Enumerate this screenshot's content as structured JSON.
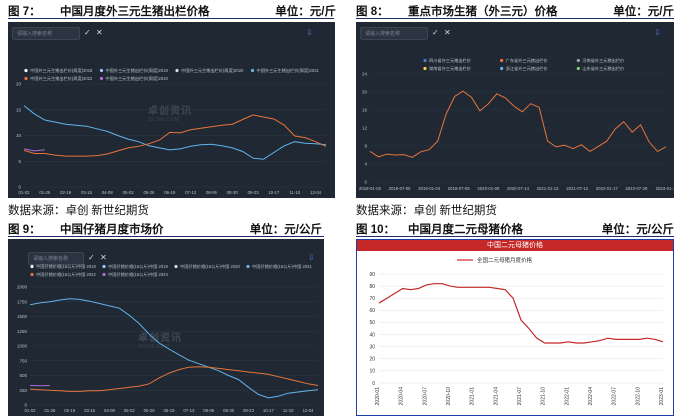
{
  "figures": [
    {
      "num": "图  7：",
      "title": "中国月度外三元生猪出栏价格",
      "unit": "单位：元/斤"
    },
    {
      "num": "图  8：",
      "title": "重点市场生猪（外三元）价格",
      "unit": "单位：元/斤"
    },
    {
      "num": "图  9：",
      "title": "中国仔猪月度市场价",
      "unit": "单位：元/公斤"
    },
    {
      "num": "图  10：",
      "title": "中国月度二元母猪价格",
      "unit": "单位：元/公斤"
    }
  ],
  "source_text": "数据来源：卓创    新世纪期货",
  "ui": {
    "search_placeholder": "请输入搜索名称",
    "confirm_glyph": "✓",
    "cancel_glyph": "✕",
    "download_glyph": "⇩",
    "watermark_main": "卓创资讯",
    "watermark_sub": "SCI99.COM"
  },
  "colors": {
    "panel_bg": "#1f2833",
    "grid": "#2f3a47",
    "tick_text": "#b9c2cc",
    "accent_red": "#c62828",
    "line_2018": "#ffffff",
    "line_2019": "#a0c4ff",
    "line_2020": "#d9d9d9",
    "line_2021": "#63b3ed",
    "line_2022": "#e8743b",
    "line_2023": "#b46ad6"
  },
  "chart_data": [
    {
      "id": "fig7",
      "type": "line",
      "title": "中国月度外三元生猪出栏价格",
      "ylim": [
        0,
        20
      ],
      "yticks": [
        0,
        5,
        10,
        15,
        20
      ],
      "x_ticks": [
        "01-02",
        "01-14",
        "01-26",
        "02-07",
        "02-19",
        "03-03",
        "03-15",
        "03-27",
        "04-08",
        "04-20",
        "05-02",
        "05-14",
        "05-26",
        "06-07",
        "06-19",
        "07-01",
        "07-13",
        "07-25",
        "08-06",
        "08-18",
        "08-30",
        "09-11",
        "09-23",
        "10-05",
        "10-17",
        "10-29",
        "11-10",
        "11-22",
        "12-04",
        "12-16"
      ],
      "legend": [
        "中国外三元生猪出栏价(周度)2018",
        "中国外三元生猪出栏价(周度)2019",
        "中国外三元生猪出栏价(周度)2020",
        "中国外三元生猪出栏价(周度)2021",
        "中国外三元生猪出栏价(周度)2022",
        "中国外三元生猪出栏价(周度)2023"
      ],
      "series": [
        {
          "name": "中国外三元生猪出栏价(周度)2021",
          "color": "#63b3ed",
          "values": [
            15.8,
            14.2,
            13.0,
            12.6,
            12.2,
            12.0,
            11.8,
            11.3,
            10.8,
            10.0,
            9.3,
            8.8,
            8.0,
            7.6,
            7.2,
            7.4,
            7.9,
            8.2,
            8.3,
            8.0,
            7.6,
            6.9,
            5.6,
            5.4,
            6.7,
            8.0,
            8.8,
            8.5,
            8.4,
            8.2
          ]
        },
        {
          "name": "中国外三元生猪出栏价(周度)2022",
          "color": "#e8743b",
          "values": [
            7.1,
            6.5,
            6.5,
            6.2,
            6.0,
            6.0,
            6.0,
            6.1,
            6.4,
            7.0,
            7.6,
            7.9,
            8.4,
            9.1,
            10.6,
            10.5,
            11.1,
            11.4,
            11.7,
            12.0,
            12.2,
            13.1,
            14.0,
            13.6,
            13.2,
            12.0,
            9.9,
            9.6,
            8.8,
            7.9
          ]
        },
        {
          "name": "中国外三元生猪出栏价(周度)2023",
          "color": "#b46ad6",
          "values": [
            7.4,
            7.0,
            7.2,
            null,
            null,
            null,
            null,
            null,
            null,
            null,
            null,
            null,
            null,
            null,
            null,
            null,
            null,
            null,
            null,
            null,
            null,
            null,
            null,
            null,
            null,
            null,
            null,
            null,
            null,
            null
          ]
        }
      ]
    },
    {
      "id": "fig8",
      "type": "line",
      "title": "重点市场生猪（外三元）价格",
      "ylim": [
        0,
        24
      ],
      "yticks": [
        0,
        4,
        8,
        12,
        16,
        20,
        24
      ],
      "x_ticks": [
        "2018-01-02",
        "2018-07-05",
        "2019-01-04",
        "2019-07-05",
        "2020-01-08",
        "2020-07-14",
        "2021-01-13",
        "2021-07-12",
        "2022-01-17",
        "2022-07-29",
        "2023-01-..."
      ],
      "legend": [
        "四川省外三元猪出栏价",
        "广东省外三元猪出栏价",
        "河南省外三元猪出栏价",
        "湖南省外三元猪出栏价",
        "浙江省外三元猪出栏价",
        "山东省外三元猪出栏价"
      ],
      "series_colors": [
        "#4e7fd0",
        "#e8743b",
        "#9aa3ad",
        "#ffcc4d",
        "#63b3ed",
        "#7ad36b"
      ],
      "series": [
        {
          "name": "广东",
          "color": "#e8743b",
          "values": [
            6.8,
            5.6,
            6.2,
            6.0,
            6.1,
            5.5,
            6.7,
            7.2,
            9.1,
            15.1,
            19.0,
            20.2,
            18.8,
            15.8,
            17.4,
            19.6,
            18.7,
            16.9,
            15.6,
            17.4,
            16.6,
            9.1,
            7.8,
            8.2,
            7.4,
            8.3,
            6.8,
            7.9,
            9.1,
            11.8,
            13.4,
            11.1,
            12.7,
            8.9,
            6.8,
            7.8
          ]
        }
      ]
    },
    {
      "id": "fig9",
      "type": "line",
      "title": "中国仔猪月度市场价",
      "ylim": [
        0,
        2000
      ],
      "yticks": [
        0,
        250,
        500,
        750,
        1000,
        1250,
        1500,
        1750,
        2000
      ],
      "x_ticks": [
        "01-02",
        "01-14",
        "01-26",
        "02-07",
        "02-19",
        "03-03",
        "03-15",
        "03-27",
        "04-08",
        "04-20",
        "05-02",
        "05-14",
        "05-26",
        "06-07",
        "06-19",
        "07-01",
        "07-13",
        "07-25",
        "08-06",
        "08-18",
        "08-30",
        "09-11",
        "09-23",
        "10-05",
        "10-17",
        "10-29",
        "11-10",
        "11-22",
        "12-04",
        "12-16"
      ],
      "legend": [
        "中国仔猪价格(15公斤)中国 2018",
        "中国仔猪价格(15公斤)中国 2019",
        "中国仔猪价格(15公斤)中国 2020",
        "中国仔猪价格(15公斤)中国 2021",
        "中国仔猪价格(15公斤)中国 2022",
        "中国仔猪价格(15公斤)中国 2023"
      ],
      "series": [
        {
          "name": "中国仔猪价格(15公斤)中国 2021",
          "color": "#63b3ed",
          "values": [
            1700,
            1730,
            1750,
            1780,
            1800,
            1790,
            1760,
            1720,
            1680,
            1640,
            1520,
            1380,
            1200,
            1050,
            950,
            850,
            760,
            700,
            640,
            580,
            500,
            430,
            300,
            180,
            120,
            150,
            200,
            220,
            240,
            260
          ]
        },
        {
          "name": "中国仔猪价格(15公斤)中国 2022",
          "color": "#e8743b",
          "values": [
            270,
            260,
            250,
            240,
            230,
            230,
            240,
            240,
            260,
            280,
            300,
            320,
            360,
            460,
            540,
            600,
            640,
            650,
            640,
            620,
            600,
            580,
            560,
            540,
            520,
            480,
            440,
            400,
            360,
            330
          ]
        },
        {
          "name": "中国仔猪价格(15公斤)中国 2023",
          "color": "#b46ad6",
          "values": [
            330,
            325,
            330,
            null,
            null,
            null,
            null,
            null,
            null,
            null,
            null,
            null,
            null,
            null,
            null,
            null,
            null,
            null,
            null,
            null,
            null,
            null,
            null,
            null,
            null,
            null,
            null,
            null,
            null,
            null
          ]
        }
      ]
    },
    {
      "id": "fig10",
      "type": "line",
      "title": "中国二元母猪价格",
      "legend_label": "全国二元母猪月度价格",
      "ylim": [
        0,
        90
      ],
      "yticks": [
        0,
        10,
        20,
        30,
        40,
        50,
        60,
        70,
        80,
        90
      ],
      "x": [
        "2020-01",
        "2020-02",
        "2020-03",
        "2020-04",
        "2020-05",
        "2020-06",
        "2020-07",
        "2020-08",
        "2020-09",
        "2020-10",
        "2020-11",
        "2020-12",
        "2021-01",
        "2021-02",
        "2021-03",
        "2021-04",
        "2021-05",
        "2021-06",
        "2021-07",
        "2021-08",
        "2021-09",
        "2021-10",
        "2021-11",
        "2021-12",
        "2022-01",
        "2022-02",
        "2022-03",
        "2022-04",
        "2022-05",
        "2022-06",
        "2022-07",
        "2022-08",
        "2022-09",
        "2022-10",
        "2022-11",
        "2022-12",
        "2023-01"
      ],
      "x_ticks": [
        "2020-01",
        "2020-04",
        "2020-07",
        "2020-10",
        "2021-01",
        "2021-04",
        "2021-07",
        "2021-10",
        "2022-01",
        "2022-04",
        "2022-07",
        "2022-10",
        "2023-01"
      ],
      "values": [
        66,
        70,
        74,
        78,
        77,
        78,
        81,
        82,
        82,
        80,
        79,
        79,
        79,
        79,
        79,
        78,
        77,
        70,
        52,
        45,
        37,
        33,
        33,
        33,
        34,
        33,
        33,
        34,
        35,
        37,
        36,
        36,
        36,
        36,
        37,
        36,
        34
      ]
    }
  ]
}
